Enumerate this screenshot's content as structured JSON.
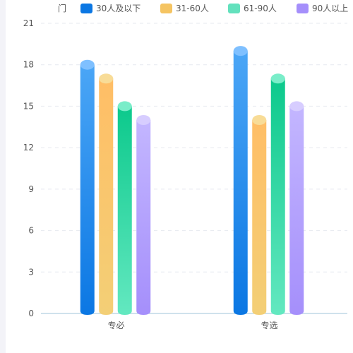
{
  "chart_data": {
    "type": "bar",
    "title": "",
    "xlabel": "",
    "ylabel": "",
    "ylim": [
      0,
      21
    ],
    "yticks": [
      0,
      3,
      6,
      9,
      12,
      15,
      18,
      21
    ],
    "legend_placement": "top",
    "legend_clipped_prefix": "门",
    "categories": [
      "专必",
      "专选"
    ],
    "series": [
      {
        "name": "30人及以下",
        "values": [
          18,
          19
        ],
        "color_top": "#4ba6f6",
        "color_bottom": "#0b77e3",
        "cap": "#7fc0ff"
      },
      {
        "name": "31-60人",
        "values": [
          17,
          14
        ],
        "color_top": "#ffbe66",
        "color_bottom": "#f3cf76",
        "cap": "#f8dc97"
      },
      {
        "name": "61-90人",
        "values": [
          15,
          17
        ],
        "color_top": "#0cc98c",
        "color_bottom": "#63e8c0",
        "cap": "#7aedc9"
      },
      {
        "name": "90人以上",
        "values": [
          14,
          15
        ],
        "color_top": "#c3b6ff",
        "color_bottom": "#a58ffb",
        "cap": "#d7cdff"
      }
    ],
    "legend_colors": [
      "#0b77e3",
      "#f5c462",
      "#63e1bd",
      "#a58ffb"
    ],
    "grid": true,
    "style": "3d-cylinder"
  }
}
